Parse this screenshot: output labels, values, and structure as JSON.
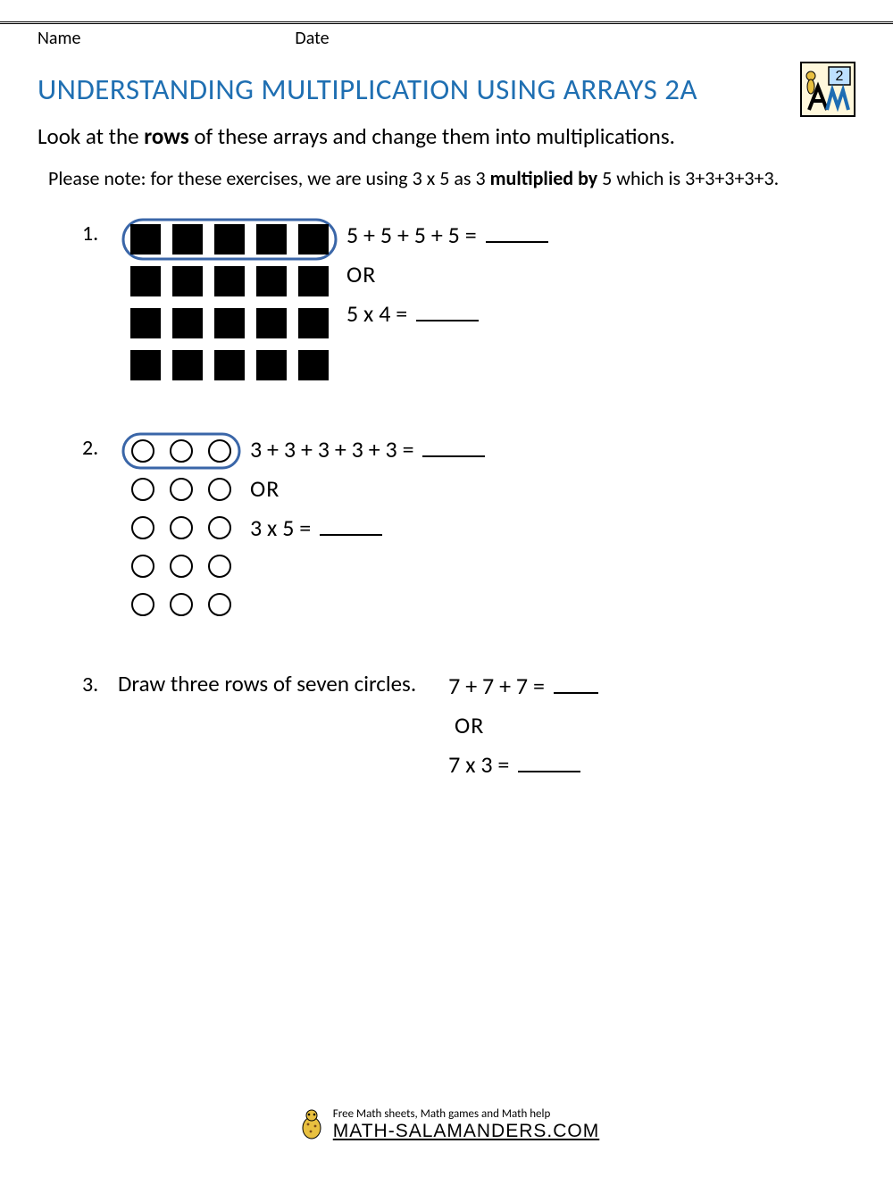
{
  "header": {
    "name_label": "Name",
    "date_label": "Date"
  },
  "title": "UNDERSTANDING MULTIPLICATION USING ARRAYS 2A",
  "grade_badge": {
    "number": "2",
    "bg": "#fff8dc",
    "accent": "#1e6db3"
  },
  "instructions": {
    "pre": "Look at the ",
    "bold": "rows",
    "post": " of these arrays and change them into multiplications."
  },
  "note": {
    "pre": "Please note: for these exercises, we are using 3 x 5 as 3 ",
    "bold": "multiplied by",
    "post": " 5 which is 3+3+3+3+3."
  },
  "problems": [
    {
      "num": "1.",
      "array": {
        "shape": "square",
        "rows": 4,
        "cols": 5,
        "cell": 34,
        "gap": 13,
        "fill": "#000000",
        "ring_stroke": "#3a66a8",
        "ring_w": 3
      },
      "addition": "5 + 5 + 5 + 5 =",
      "or": "OR",
      "mult": "5 x 4 ="
    },
    {
      "num": "2.",
      "array": {
        "shape": "circle",
        "rows": 5,
        "cols": 3,
        "cell": 28,
        "gap": 15,
        "fill": "none",
        "stroke": "#000000",
        "ring_stroke": "#3a66a8",
        "ring_w": 3
      },
      "addition": "3 + 3 + 3 + 3 + 3 =",
      "or": "OR",
      "mult": "3 x 5 ="
    },
    {
      "num": "3.",
      "draw_text": "Draw three rows of seven circles.",
      "addition": "7 + 7 + 7 =",
      "or": "OR",
      "mult": "7 x 3  ="
    }
  ],
  "footer": {
    "tagline": "Free Math sheets, Math games and Math help",
    "brand": "MATH-SALAMANDERS.COM"
  }
}
